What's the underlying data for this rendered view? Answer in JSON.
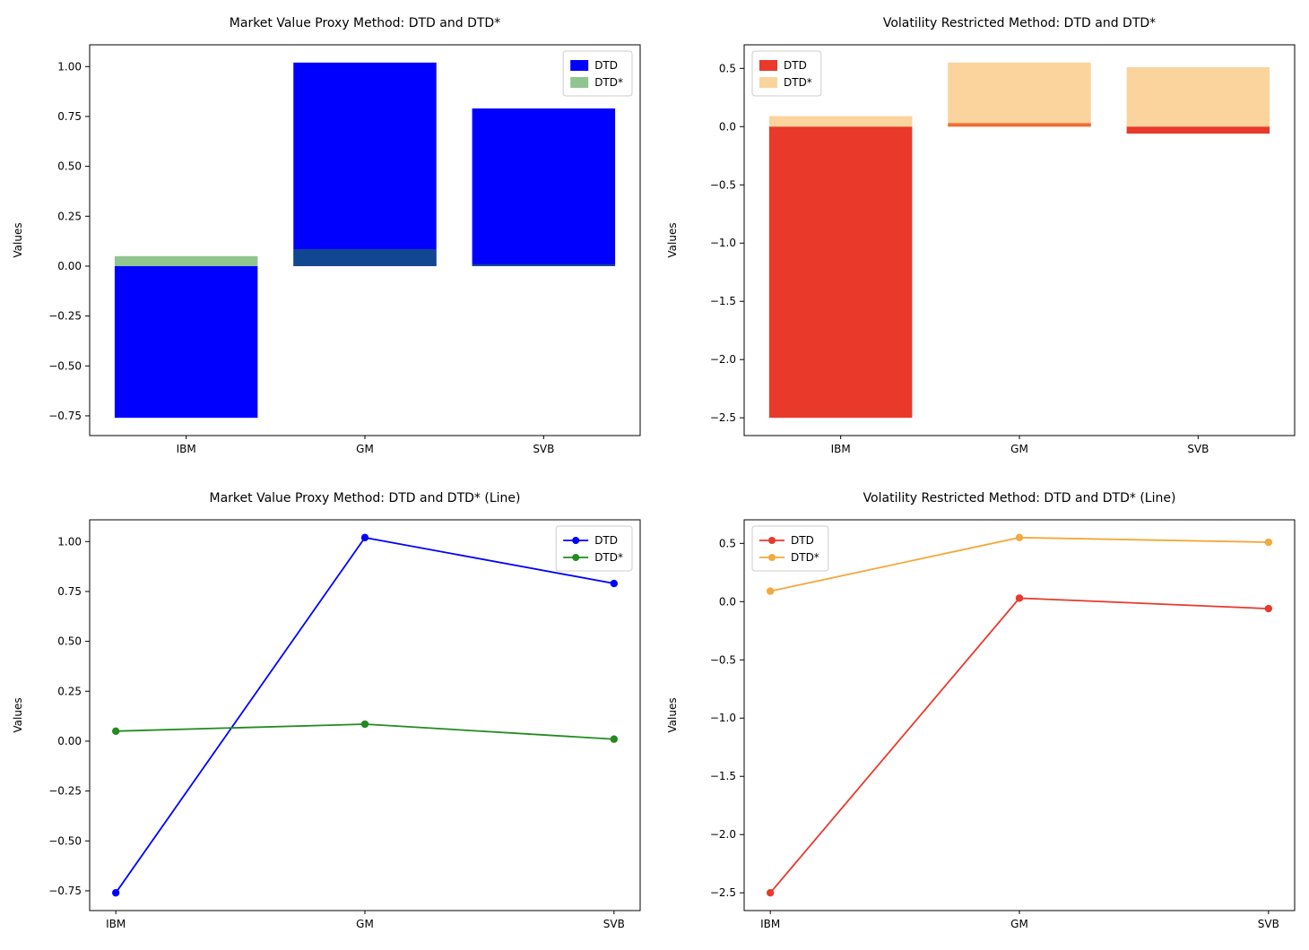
{
  "figure": {
    "background": "#ffffff"
  },
  "chart_data": [
    {
      "id": "market-value-bar",
      "type": "bar",
      "title": "Market Value Proxy Method: DTD and DTD*",
      "xlabel": "",
      "ylabel": "Values",
      "categories": [
        "IBM",
        "GM",
        "SVB"
      ],
      "series": [
        {
          "name": "DTD",
          "color": "#0000ff",
          "alpha": 1.0,
          "values": [
            -0.76,
            1.02,
            0.79
          ]
        },
        {
          "name": "DTD*",
          "color": "#228B22",
          "alpha": 0.5,
          "values": [
            0.05,
            0.085,
            0.01
          ]
        }
      ],
      "ylim": [
        -0.849,
        1.109
      ],
      "yticks": [
        {
          "v": 1.0,
          "label": "1.00"
        },
        {
          "v": 0.75,
          "label": "0.75"
        },
        {
          "v": 0.5,
          "label": "0.50"
        },
        {
          "v": 0.25,
          "label": "0.25"
        },
        {
          "v": 0.0,
          "label": "0.00"
        },
        {
          "v": -0.25,
          "label": "−0.25"
        },
        {
          "v": -0.5,
          "label": "−0.50"
        },
        {
          "v": -0.75,
          "label": "−0.75"
        }
      ],
      "legend_position": "upper-right",
      "grid": false
    },
    {
      "id": "volatility-bar",
      "type": "bar",
      "title": "Volatility Restricted Method: DTD and DTD*",
      "xlabel": "",
      "ylabel": "Values",
      "categories": [
        "IBM",
        "GM",
        "SVB"
      ],
      "series": [
        {
          "name": "DTD",
          "color": "#e8392b",
          "alpha": 1.0,
          "values": [
            -2.5,
            0.03,
            -0.06
          ]
        },
        {
          "name": "DTD*",
          "color": "#f5a83c",
          "alpha": 0.5,
          "values": [
            0.09,
            0.55,
            0.51
          ]
        }
      ],
      "ylim": [
        -2.6525,
        0.7025
      ],
      "yticks": [
        {
          "v": 0.5,
          "label": "0.5"
        },
        {
          "v": 0.0,
          "label": "0.0"
        },
        {
          "v": -0.5,
          "label": "−0.5"
        },
        {
          "v": -1.0,
          "label": "−1.0"
        },
        {
          "v": -1.5,
          "label": "−1.5"
        },
        {
          "v": -2.0,
          "label": "−2.0"
        },
        {
          "v": -2.5,
          "label": "−2.5"
        }
      ],
      "legend_position": "upper-left",
      "grid": false
    },
    {
      "id": "market-value-line",
      "type": "line",
      "title": "Market Value Proxy Method: DTD and DTD* (Line)",
      "xlabel": "",
      "ylabel": "Values",
      "categories": [
        "IBM",
        "GM",
        "SVB"
      ],
      "series": [
        {
          "name": "DTD",
          "color": "#0000ff",
          "alpha": 1.0,
          "values": [
            -0.76,
            1.02,
            0.79
          ]
        },
        {
          "name": "DTD*",
          "color": "#228B22",
          "alpha": 1.0,
          "values": [
            0.05,
            0.085,
            0.01
          ]
        }
      ],
      "ylim": [
        -0.849,
        1.109
      ],
      "yticks": [
        {
          "v": 1.0,
          "label": "1.00"
        },
        {
          "v": 0.75,
          "label": "0.75"
        },
        {
          "v": 0.5,
          "label": "0.50"
        },
        {
          "v": 0.25,
          "label": "0.25"
        },
        {
          "v": 0.0,
          "label": "0.00"
        },
        {
          "v": -0.25,
          "label": "−0.25"
        },
        {
          "v": -0.5,
          "label": "−0.50"
        },
        {
          "v": -0.75,
          "label": "−0.75"
        }
      ],
      "legend_position": "upper-right",
      "grid": false
    },
    {
      "id": "volatility-line",
      "type": "line",
      "title": "Volatility Restricted Method: DTD and DTD* (Line)",
      "xlabel": "",
      "ylabel": "Values",
      "categories": [
        "IBM",
        "GM",
        "SVB"
      ],
      "series": [
        {
          "name": "DTD",
          "color": "#e8392b",
          "alpha": 1.0,
          "values": [
            -2.5,
            0.03,
            -0.06
          ]
        },
        {
          "name": "DTD*",
          "color": "#f5a83c",
          "alpha": 1.0,
          "values": [
            0.09,
            0.55,
            0.51
          ]
        }
      ],
      "ylim": [
        -2.6525,
        0.7025
      ],
      "yticks": [
        {
          "v": 0.5,
          "label": "0.5"
        },
        {
          "v": 0.0,
          "label": "0.0"
        },
        {
          "v": -0.5,
          "label": "−0.5"
        },
        {
          "v": -1.0,
          "label": "−1.0"
        },
        {
          "v": -1.5,
          "label": "−1.5"
        },
        {
          "v": -2.0,
          "label": "−2.0"
        },
        {
          "v": -2.5,
          "label": "−2.5"
        }
      ],
      "legend_position": "upper-left",
      "grid": false
    }
  ]
}
